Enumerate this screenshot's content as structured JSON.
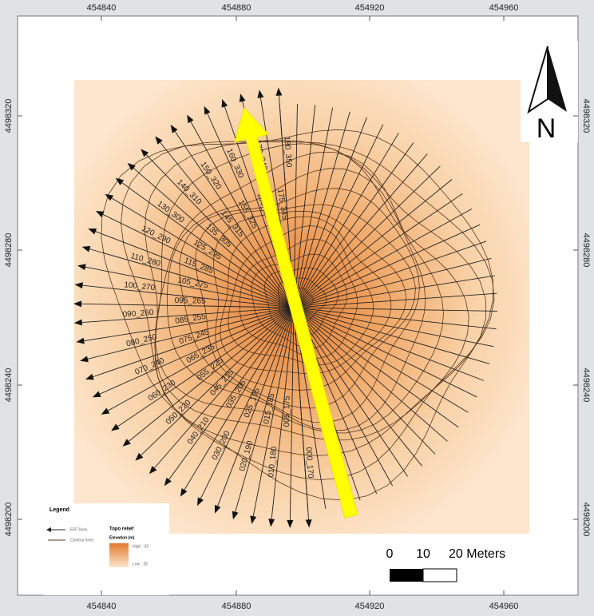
{
  "frame": {
    "top_ticks": [
      454840,
      454880,
      454920,
      454960
    ],
    "bottom_ticks": [
      454840,
      454880,
      454920,
      454960
    ],
    "left_ticks": [
      4498320,
      4498280,
      4498240,
      4498200
    ],
    "right_ticks": [
      4498320,
      4498280,
      4498240,
      4498200
    ]
  },
  "north_arrow": {
    "label": "N"
  },
  "ert_lines": {
    "labels": [
      "000_170",
      "005_175",
      "010_180",
      "015_185",
      "020_190",
      "025_195",
      "030_200",
      "035_205",
      "040_210",
      "045_215",
      "050_220",
      "055_225",
      "060_230",
      "065_235",
      "070_240",
      "075_245",
      "080_250",
      "085_255",
      "090_260",
      "095_265",
      "100_270",
      "105_275",
      "110_280",
      "115_285",
      "120_290",
      "125_295",
      "130_300",
      "135_305",
      "140_310",
      "145_315",
      "150_320",
      "155_325",
      "160_330",
      "165_335",
      "170_340",
      "175_345",
      "180_350"
    ]
  },
  "legend": {
    "title": "Legend",
    "items": [
      "ERT lines",
      "Contour lines"
    ],
    "raster_title": "Topo relief",
    "raster_subtitle": "Elevation (m)",
    "high": "High : 33",
    "low": "Low : 26"
  },
  "scale_bar": {
    "labels": [
      "0",
      "10",
      "20 Meters"
    ]
  }
}
